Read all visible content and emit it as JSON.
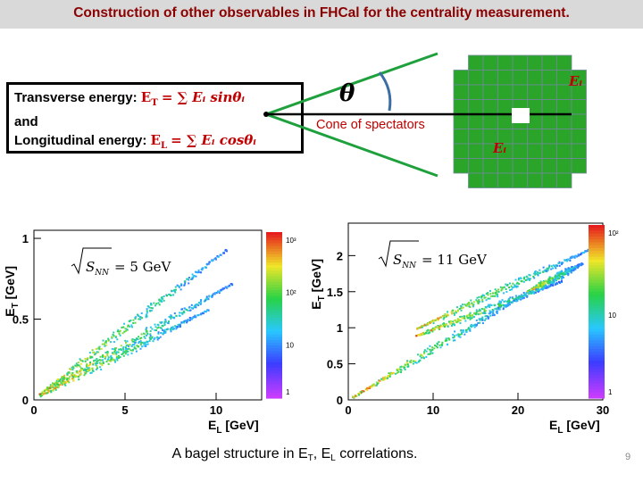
{
  "slide": {
    "title": "Construction of other observables in FHCal for the centrality measurement.",
    "page_number": "9"
  },
  "formula": {
    "line1_label": "Transverse energy",
    "line1_colon": ":",
    "line1_formula_lhs": "E",
    "line1_formula_sub": "T",
    "line1_formula_rhs": "= ∑ Eᵢ sinθᵢ",
    "line2": "and",
    "line3_label": "Longitudinal energy:",
    "line3_formula_lhs": "E",
    "line3_formula_sub": "L",
    "line3_formula_rhs": "= ∑ Eᵢ cosθᵢ"
  },
  "diagram": {
    "theta_label": "θ",
    "cone_label": "Cone of spectators",
    "ei_label_top": "Eᵢ",
    "ei_label_bottom": "Eᵢ",
    "cone_color": "#1ea03c",
    "module_color": "#2aa52a",
    "module_border": "#6e8a9a",
    "arc_color": "#3a6ea5"
  },
  "caption": {
    "prefix": "A bagel structure in E",
    "sub1": "T",
    "middle": ", E",
    "sub2": "L",
    "suffix": " correlations."
  },
  "chart_data": [
    {
      "type": "heatmap",
      "annotation": "√S_NN = 5 GeV",
      "annotation_text": "= 5 GeV",
      "xlabel": "E_L [GeV]",
      "ylabel": "E_T [GeV]",
      "xlim": [
        0,
        12.5
      ],
      "ylim": [
        0,
        1.05
      ],
      "x_ticks": [
        0,
        5,
        10
      ],
      "x_tick_labels": [
        "0",
        "5",
        "10"
      ],
      "y_ticks": [
        0,
        0.5,
        1
      ],
      "y_tick_labels": [
        "0",
        "0.5",
        "1"
      ],
      "colorbar_labels": [
        "10³",
        "10²",
        "10",
        "1"
      ],
      "bands": [
        {
          "from": [
            0.3,
            0.04
          ],
          "to": [
            10.5,
            0.93
          ]
        },
        {
          "from": [
            0.7,
            0.07
          ],
          "to": [
            10.8,
            0.72
          ]
        },
        {
          "from": [
            0.3,
            0.03
          ],
          "to": [
            9.5,
            0.56
          ]
        }
      ]
    },
    {
      "type": "heatmap",
      "annotation": "√S_NN = 11 GeV",
      "annotation_text": "= 11 GeV",
      "xlabel": "E_L [GeV]",
      "ylabel": "E_T [GeV]",
      "xlim": [
        0,
        30
      ],
      "ylim": [
        0,
        2.45
      ],
      "x_ticks": [
        0,
        10,
        20,
        30
      ],
      "x_tick_labels": [
        "0",
        "10",
        "20",
        "30"
      ],
      "y_ticks": [
        0,
        0.5,
        1,
        1.5,
        2
      ],
      "y_tick_labels": [
        "0",
        "0.5",
        "1",
        "1.5",
        "2"
      ],
      "colorbar_labels": [
        "10²",
        "10",
        "1"
      ],
      "bands": [
        {
          "from": [
            0.5,
            0.05
          ],
          "to": [
            21,
            1.5
          ]
        },
        {
          "from": [
            21,
            1.5
          ],
          "to": [
            27.5,
            1.9
          ]
        },
        {
          "from": [
            8,
            1.0
          ],
          "to": [
            28.5,
            2.1
          ]
        },
        {
          "from": [
            8,
            0.9
          ],
          "to": [
            25,
            1.65
          ]
        }
      ]
    }
  ]
}
